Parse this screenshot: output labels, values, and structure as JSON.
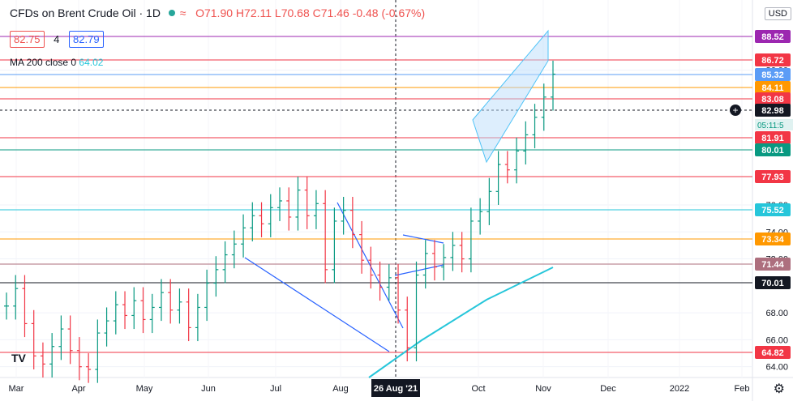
{
  "header": {
    "title": "CFDs on Brent Crude Oil · 1D",
    "open": "O71.90",
    "high": "H72.11",
    "low": "L70.68",
    "close": "C71.46",
    "change": "-0.48 (-0.67%)",
    "bid": "82.75",
    "spread": "4",
    "ask": "82.79",
    "ma_label": "MA 200 close 0",
    "ma_value": "64.02",
    "currency": "USD",
    "logo_text": "TV"
  },
  "chart_data": {
    "type": "ohlc",
    "title": "CFDs on Brent Crude Oil · 1D",
    "x_ticks": [
      "Mar",
      "Apr",
      "May",
      "Jun",
      "Jul",
      "Aug",
      "26 Aug '21",
      "Oct",
      "Nov",
      "Dec",
      "2022",
      "Feb"
    ],
    "y_ticks": [
      64.0,
      66.0,
      68.0,
      72.0,
      74.0,
      76.0,
      86.0
    ],
    "ylim": [
      63.2,
      91.2
    ],
    "horizontal_levels": [
      {
        "label": "88.52",
        "color": "#9c27b0"
      },
      {
        "label": "86.72",
        "color": "#f23645"
      },
      {
        "label": "85.32",
        "color": "#5b9cf6"
      },
      {
        "label": "84.11",
        "color": "#ff9800"
      },
      {
        "label": "83.08",
        "color": "#f23645"
      },
      {
        "label": "82.98",
        "color": "#131722"
      },
      {
        "label": "81.91",
        "color": "#f23645"
      },
      {
        "label": "80.01",
        "color": "#089981"
      },
      {
        "label": "77.93",
        "color": "#f23645"
      },
      {
        "label": "75.52",
        "color": "#26c6da"
      },
      {
        "label": "73.34",
        "color": "#ff9800"
      },
      {
        "label": "71.44",
        "color": "#ad6f7e"
      },
      {
        "label": "70.01",
        "color": "#131722"
      },
      {
        "label": "64.82",
        "color": "#f23645"
      }
    ],
    "countdown": "05:11:5",
    "ma200": [
      [
        0,
        62.6
      ],
      [
        60,
        66.2
      ],
      [
        120,
        69.0
      ],
      [
        150,
        70.6
      ]
    ],
    "series": [
      {
        "name": "price",
        "x": [
          0,
          10,
          20,
          30,
          40,
          50,
          60,
          70,
          80,
          90,
          100,
          110,
          120,
          130,
          140,
          150,
          160,
          170,
          180,
          190,
          200,
          210,
          220,
          230,
          240,
          250,
          260,
          270,
          280,
          290,
          300,
          310,
          320,
          330,
          340,
          350,
          360,
          370,
          380,
          390,
          400,
          410,
          420,
          430,
          440,
          450,
          460,
          470,
          480,
          490,
          500,
          510,
          520,
          530,
          540,
          550,
          560,
          570,
          580,
          590,
          600
        ],
        "y": [
          68.5,
          69.8,
          67.2,
          64.8,
          64.2,
          65.5,
          66.8,
          65.2,
          64.0,
          63.8,
          66.5,
          67.4,
          68.6,
          67.8,
          68.9,
          67.5,
          68.4,
          69.5,
          68.2,
          68.8,
          66.9,
          68.4,
          70.2,
          71.2,
          72.3,
          73.1,
          74.3,
          75.2,
          74.6,
          75.8,
          76.3,
          75.1,
          77.1,
          75.2,
          76.1,
          71.2,
          74.8,
          75.6,
          73.8,
          71.9,
          70.8,
          69.9,
          70.6,
          68.2,
          65.4,
          70.8,
          72.4,
          71.4,
          72.1,
          73.0,
          72.0,
          74.8,
          75.5,
          77.0,
          79.0,
          78.6,
          80.0,
          81.2,
          82.5,
          84.0,
          85.7
        ]
      }
    ]
  }
}
